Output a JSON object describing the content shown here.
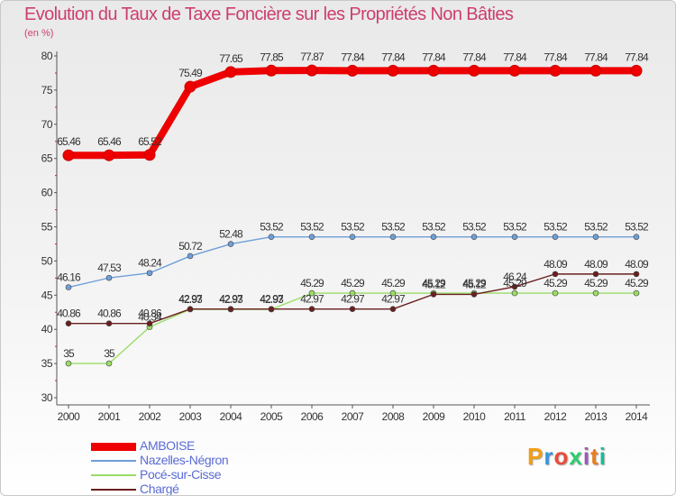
{
  "chart_data": {
    "type": "line",
    "title": "Evolution du Taux de Taxe Foncière sur les Propriétés Non Bâties",
    "subtitle": "(en %)",
    "x": [
      "2000",
      "2001",
      "2002",
      "2003",
      "2004",
      "2005",
      "2006",
      "2007",
      "2008",
      "2009",
      "2010",
      "2011",
      "2012",
      "2013",
      "2014"
    ],
    "ylim": [
      30,
      80
    ],
    "yticks": [
      "30",
      "35",
      "40",
      "45",
      "50",
      "55",
      "60",
      "65",
      "70",
      "75",
      "80"
    ],
    "grid": false,
    "legend_position": "bottom-left",
    "series": [
      {
        "name": "AMBOISE",
        "color": "#ee0000",
        "values": [
          65.46,
          65.46,
          65.52,
          75.49,
          77.65,
          77.85,
          77.87,
          77.84,
          77.84,
          77.84,
          77.84,
          77.84,
          77.84,
          77.84,
          77.84
        ],
        "labels": [
          "65.46",
          "65.46",
          "65.52",
          "75.49",
          "77.65",
          "77.85",
          "77.87",
          "77.84",
          "77.84",
          "77.84",
          "77.84",
          "77.84",
          "77.84",
          "77.84",
          "77.84"
        ]
      },
      {
        "name": "Nazelles-Négron",
        "color": "#6f9fd8",
        "values": [
          46.16,
          47.53,
          48.24,
          50.72,
          52.48,
          53.52,
          53.52,
          53.52,
          53.52,
          53.52,
          53.52,
          53.52,
          53.52,
          53.52,
          53.52
        ],
        "labels": [
          "46.16",
          "47.53",
          "48.24",
          "50.72",
          "52.48",
          "53.52",
          "53.52",
          "53.52",
          "53.52",
          "53.52",
          "53.52",
          "53.52",
          "53.52",
          "53.52",
          "53.52"
        ]
      },
      {
        "name": "Pocé-sur-Cisse",
        "color": "#99dd66",
        "values": [
          35,
          35,
          40.34,
          42.93,
          42.93,
          42.93,
          45.29,
          45.29,
          45.29,
          45.29,
          45.29,
          45.29,
          45.29,
          45.29,
          45.29
        ],
        "labels": [
          "35",
          "35",
          "40.34",
          "42.93",
          "42.93",
          "42.93",
          "45.29",
          "45.29",
          "45.29",
          "45.29",
          "45.29",
          "45.29",
          "45.29",
          "45.29",
          "45.29"
        ]
      },
      {
        "name": "Chargé",
        "color": "#6b1e1e",
        "values": [
          40.86,
          40.86,
          40.86,
          42.97,
          42.97,
          42.97,
          42.97,
          42.97,
          42.97,
          45.12,
          45.12,
          46.24,
          48.09,
          48.09,
          48.09
        ],
        "labels": [
          "40.86",
          "40.86",
          "40.86",
          "42.97",
          "42.97",
          "42.97",
          "42.97",
          "42.97",
          "42.97",
          "45.12",
          "45.12",
          "46.24",
          "48.09",
          "48.09",
          "48.09"
        ]
      }
    ]
  },
  "logo": {
    "text": "Proxiti",
    "colors": [
      "#f39c12",
      "#3498db",
      "#e74c3c",
      "#2ecc71",
      "#9b59b6",
      "#e67e22",
      "#1abc9c"
    ]
  }
}
